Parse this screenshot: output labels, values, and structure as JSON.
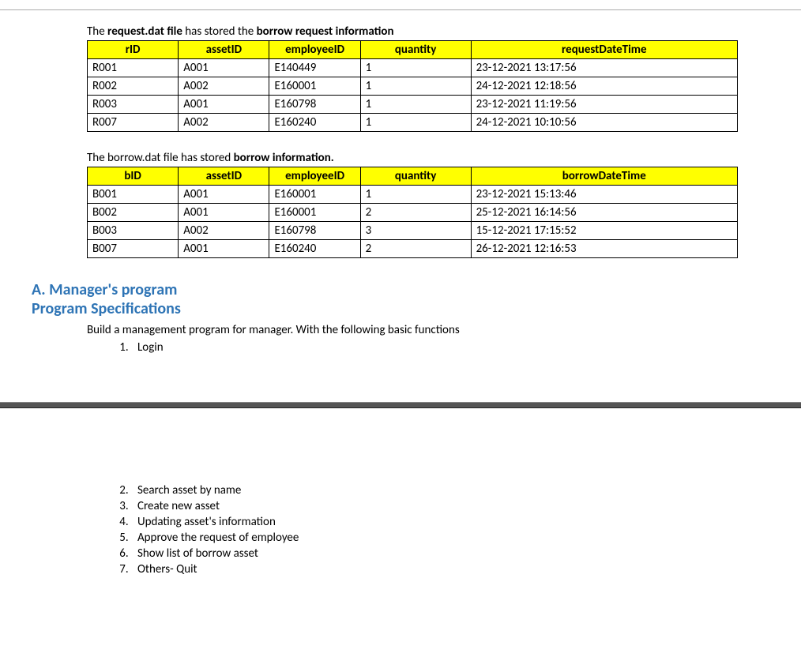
{
  "request_intro_prefix": "The ",
  "request_intro_bold1": "request.dat file",
  "request_intro_mid": " has stored the ",
  "request_intro_bold2": "borrow request information",
  "request_table": {
    "columns": [
      "rID",
      "assetID",
      "employeeID",
      "quantity",
      "requestDateTime"
    ],
    "rows": [
      [
        "R001",
        "A001",
        "E140449",
        "1",
        "23-12-2021 13:17:56"
      ],
      [
        "R002",
        "A002",
        "E160001",
        "1",
        "24-12-2021 12:18:56"
      ],
      [
        "R003",
        "A001",
        "E160798",
        "1",
        "23-12-2021 11:19:56"
      ],
      [
        "R007",
        "A002",
        "E160240",
        "1",
        "24-12-2021 10:10:56"
      ]
    ]
  },
  "borrow_intro_prefix": "The borrow.dat file has stored ",
  "borrow_intro_bold": "borrow information.",
  "borrow_table": {
    "columns": [
      "bID",
      "assetID",
      "employeeID",
      "quantity",
      "borrowDateTime"
    ],
    "rows": [
      [
        "B001",
        "A001",
        "E160001",
        "1",
        "23-12-2021 15:13:46"
      ],
      [
        "B002",
        "A001",
        "E160001",
        "2",
        "25-12-2021 16:14:56"
      ],
      [
        "B003",
        "A002",
        "E160798",
        "3",
        "15-12-2021 17:15:52"
      ],
      [
        "B007",
        "A001",
        "E160240",
        "2",
        "26-12-2021 12:16:53"
      ]
    ]
  },
  "heading_a": "A. Manager's program",
  "heading_spec": "Program Specifications",
  "spec_intro": "Build a management program for manager. With the following basic functions",
  "spec_items": [
    "Login",
    "Search asset by name",
    "Create new asset",
    "Updating asset's information",
    "Approve the request of employee",
    "Show list of borrow asset",
    "Others- Quit"
  ],
  "colors": {
    "header_bg": "#ffff00",
    "heading_color": "#2e74b5",
    "break_bg": "#555555"
  }
}
